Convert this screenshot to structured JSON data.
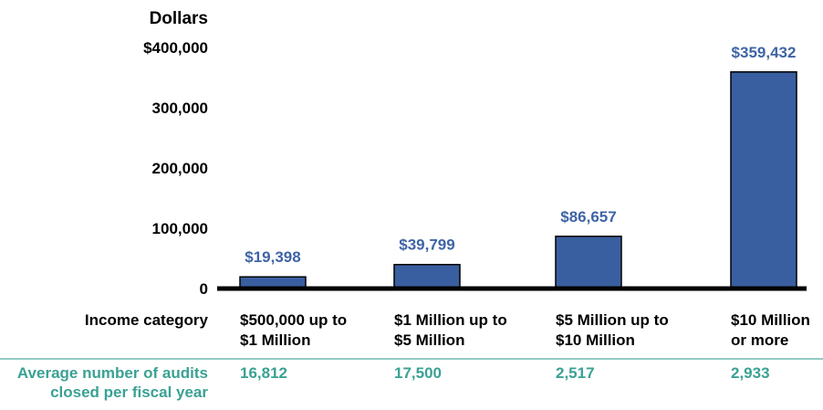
{
  "chart_data": {
    "type": "bar",
    "ylabel": "Dollars",
    "xlabel": "Income category",
    "ylim": [
      0,
      400000
    ],
    "yticks": [
      {
        "value": 400000,
        "label": "$400,000"
      },
      {
        "value": 300000,
        "label": "300,000"
      },
      {
        "value": 200000,
        "label": "200,000"
      },
      {
        "value": 100000,
        "label": "100,000"
      },
      {
        "value": 0,
        "label": "0"
      }
    ],
    "categories": [
      [
        "$500,000 up to",
        "$1 Million"
      ],
      [
        "$1 Million up to",
        "$5 Million"
      ],
      [
        "$5 Million up to",
        "$10 Million"
      ],
      [
        "$10 Million",
        "or more"
      ]
    ],
    "values": [
      19398,
      39799,
      86657,
      359432
    ],
    "data_labels": [
      "$19,398",
      "$39,799",
      "$86,657",
      "$359,432"
    ],
    "secondary_row": {
      "label": [
        "Average number of audits",
        "closed per fiscal year"
      ],
      "values": [
        "16,812",
        "17,500",
        "2,517",
        "2,933"
      ]
    },
    "grid": false,
    "legend": "none",
    "colors": {
      "bar": "#3A5FA0",
      "bar_edge": "#000000",
      "data_label": "#3F64A5",
      "secondary_row": "#3AA193",
      "divider": "#6FB8AE"
    }
  }
}
